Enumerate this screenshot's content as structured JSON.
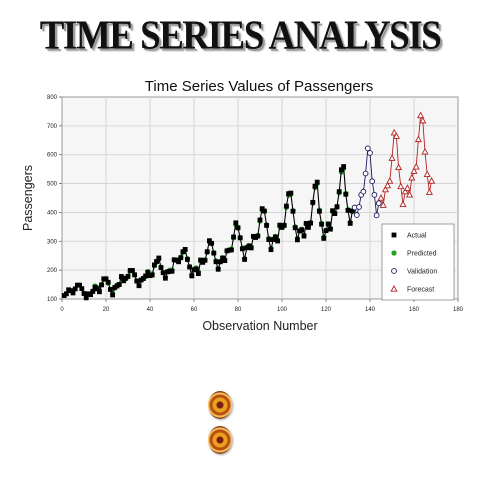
{
  "banner": {
    "title": "TIME SERIES ANALYSIS"
  },
  "colors": {
    "actual": "#000000",
    "predicted": "#1ea41e",
    "validation": "#1a1a5e",
    "forecast": "#b22222"
  },
  "decorations": {
    "bullet_icons": [
      "bullet-icon",
      "bullet-icon"
    ]
  },
  "chart_data": {
    "type": "scatter",
    "title": "Time Series Values of Passengers",
    "xlabel": "Observation Number",
    "ylabel": "Passengers",
    "xlim": [
      0,
      180
    ],
    "ylim": [
      100,
      800
    ],
    "xticks": [
      0,
      20,
      40,
      60,
      80,
      100,
      120,
      140,
      160,
      180
    ],
    "yticks": [
      100,
      200,
      300,
      400,
      500,
      600,
      700,
      800
    ],
    "grid": true,
    "legend_position": "bottom-right",
    "series": [
      {
        "name": "Actual",
        "marker": "square",
        "x": [
          1,
          2,
          3,
          4,
          5,
          6,
          7,
          8,
          9,
          10,
          11,
          12,
          13,
          14,
          15,
          16,
          17,
          18,
          19,
          20,
          21,
          22,
          23,
          24,
          25,
          26,
          27,
          28,
          29,
          30,
          31,
          32,
          33,
          34,
          35,
          36,
          37,
          38,
          39,
          40,
          41,
          42,
          43,
          44,
          45,
          46,
          47,
          48,
          49,
          50,
          51,
          52,
          53,
          54,
          55,
          56,
          57,
          58,
          59,
          60,
          61,
          62,
          63,
          64,
          65,
          66,
          67,
          68,
          69,
          70,
          71,
          72,
          73,
          74,
          75,
          76,
          77,
          78,
          79,
          80,
          81,
          82,
          83,
          84,
          85,
          86,
          87,
          88,
          89,
          90,
          91,
          92,
          93,
          94,
          95,
          96,
          97,
          98,
          99,
          100,
          101,
          102,
          103,
          104,
          105,
          106,
          107,
          108,
          109,
          110,
          111,
          112,
          113,
          114,
          115,
          116,
          117,
          118,
          119,
          120,
          121,
          122,
          123,
          124,
          125,
          126,
          127,
          128,
          129,
          130,
          131,
          132
        ],
        "values": [
          112,
          118,
          132,
          129,
          121,
          135,
          148,
          148,
          136,
          119,
          104,
          118,
          115,
          126,
          141,
          135,
          125,
          149,
          170,
          170,
          158,
          133,
          114,
          140,
          145,
          150,
          178,
          163,
          172,
          178,
          199,
          199,
          184,
          162,
          146,
          166,
          171,
          180,
          193,
          181,
          183,
          218,
          230,
          242,
          209,
          191,
          172,
          194,
          196,
          196,
          236,
          235,
          229,
          243,
          264,
          272,
          237,
          211,
          180,
          201,
          204,
          188,
          235,
          227,
          234,
          264,
          302,
          293,
          259,
          229,
          203,
          229,
          242,
          233,
          267,
          269,
          270,
          315,
          364,
          347,
          312,
          274,
          237,
          278,
          284,
          277,
          317,
          313,
          318,
          374,
          413,
          405,
          355,
          306,
          271,
          306,
          315,
          301,
          356,
          348,
          355,
          422,
          465,
          467,
          404,
          347,
          305,
          336,
          340,
          318,
          362,
          348,
          363,
          435,
          491,
          505,
          404,
          359,
          310,
          337,
          360,
          342,
          406,
          396,
          420,
          472,
          548,
          559,
          463,
          407,
          362,
          405
        ]
      },
      {
        "name": "Predicted",
        "marker": "circle",
        "x": [
          13,
          14,
          15,
          16,
          17,
          18,
          19,
          20,
          21,
          22,
          23,
          24,
          25,
          26,
          27,
          28,
          29,
          30,
          31,
          32,
          33,
          34,
          35,
          36,
          37,
          38,
          39,
          40,
          41,
          42,
          43,
          44,
          45,
          46,
          47,
          48,
          49,
          50,
          51,
          52,
          53,
          54,
          55,
          56,
          57,
          58,
          59,
          60,
          61,
          62,
          63,
          64,
          65,
          66,
          67,
          68,
          69,
          70,
          71,
          72,
          73,
          74,
          75,
          76,
          77,
          78,
          79,
          80,
          81,
          82,
          83,
          84,
          85,
          86,
          87,
          88,
          89,
          90,
          91,
          92,
          93,
          94,
          95,
          96,
          97,
          98,
          99,
          100,
          101,
          102,
          103,
          104,
          105,
          106,
          107,
          108,
          109,
          110,
          111,
          112,
          113,
          114,
          115,
          116,
          117,
          118,
          119,
          120,
          121,
          122,
          123,
          124,
          125,
          126,
          127,
          128,
          129,
          130,
          131,
          132
        ],
        "values": [
          118,
          128,
          145,
          140,
          131,
          150,
          168,
          168,
          155,
          134,
          118,
          138,
          148,
          150,
          172,
          168,
          170,
          180,
          197,
          198,
          183,
          163,
          147,
          165,
          172,
          178,
          195,
          185,
          187,
          215,
          228,
          238,
          210,
          192,
          176,
          195,
          200,
          200,
          235,
          234,
          232,
          245,
          262,
          270,
          240,
          212,
          184,
          203,
          208,
          194,
          233,
          230,
          236,
          262,
          298,
          292,
          260,
          232,
          206,
          230,
          243,
          236,
          266,
          270,
          273,
          312,
          358,
          346,
          313,
          277,
          240,
          277,
          285,
          280,
          316,
          315,
          320,
          370,
          408,
          404,
          357,
          310,
          276,
          307,
          317,
          304,
          352,
          349,
          357,
          418,
          460,
          463,
          406,
          350,
          310,
          336,
          342,
          322,
          360,
          352,
          365,
          432,
          486,
          500,
          408,
          362,
          315,
          338,
          360,
          345,
          404,
          398,
          418,
          468,
          540,
          552,
          466,
          410,
          366,
          404
        ]
      },
      {
        "name": "Validation",
        "marker": "circle-open",
        "x": [
          133,
          134,
          135,
          136,
          137,
          138,
          139,
          140,
          141,
          142,
          143,
          144
        ],
        "values": [
          417,
          391,
          419,
          461,
          472,
          535,
          622,
          606,
          508,
          461,
          390,
          432
        ]
      },
      {
        "name": "Forecast",
        "marker": "triangle-open",
        "x": [
          145,
          146,
          147,
          148,
          149,
          150,
          151,
          152,
          153,
          154,
          155,
          156,
          157,
          158,
          159,
          160,
          161,
          162,
          163,
          164,
          165,
          166,
          167,
          168
        ],
        "values": [
          450,
          425,
          479,
          493,
          509,
          588,
          676,
          664,
          556,
          490,
          428,
          472,
          484,
          461,
          520,
          543,
          558,
          653,
          736,
          718,
          610,
          532,
          470,
          509
        ]
      }
    ]
  }
}
